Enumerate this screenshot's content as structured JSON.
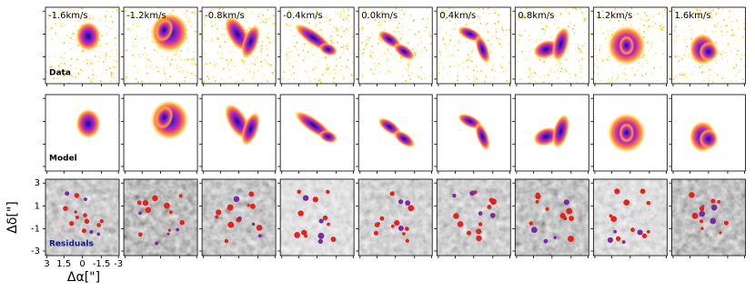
{
  "velocities": [
    "-1.6km/s",
    "-1.2km/s",
    "-0.8km/s",
    "-0.4km/s",
    "0.0km/s",
    "0.4km/s",
    "0.8km/s",
    "1.2km/s",
    "1.6km/s"
  ],
  "rows": [
    "Data",
    "Model",
    "Residuals"
  ],
  "x_axis": {
    "label": "Δα[\"]",
    "ticks": [
      "3",
      "1.5",
      "0",
      "-1.5",
      "-3"
    ]
  },
  "y_axis": {
    "label": "Δδ[\"]",
    "ticks": [
      "3",
      "1",
      "-1",
      "-3"
    ]
  }
}
